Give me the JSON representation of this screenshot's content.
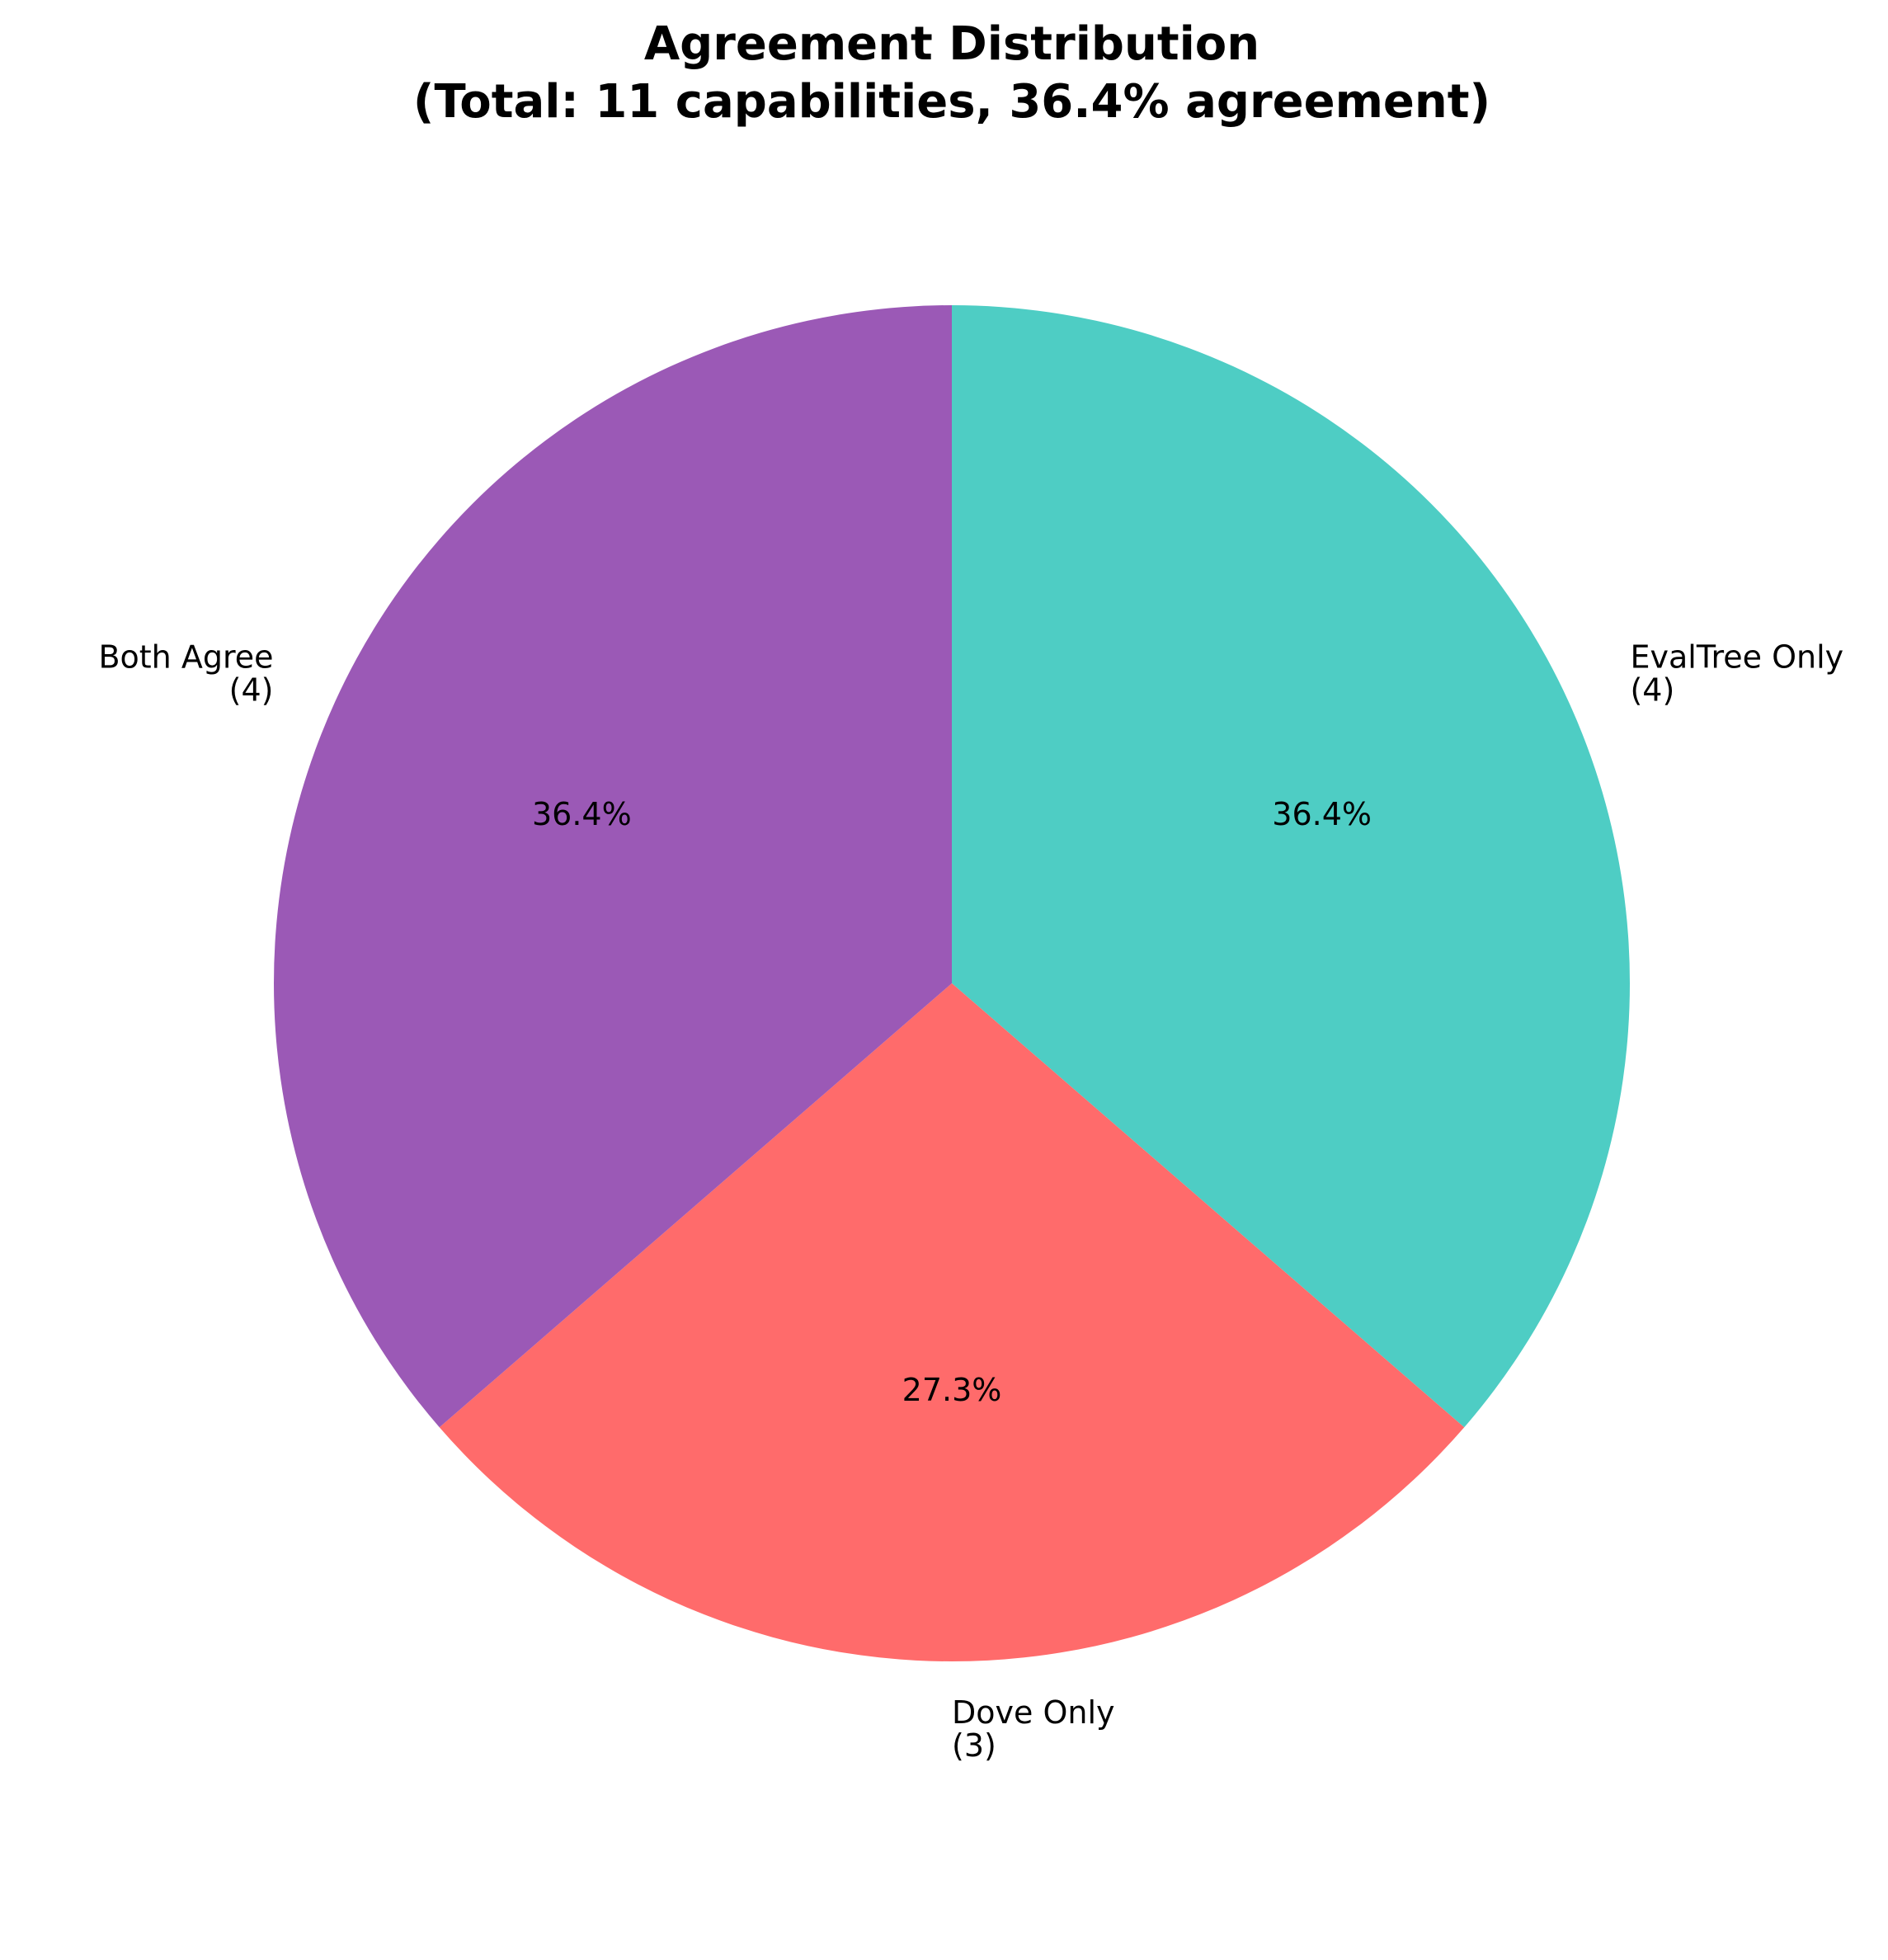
{
  "chart_data": {
    "type": "pie",
    "title": "Agreement Distribution",
    "subtitle": "(Total: 11 capabilities, 36.4% agreement)",
    "start_angle_deg": 90,
    "direction": "clockwise",
    "slices": [
      {
        "label": "EvalTree Only",
        "count_label": "(4)",
        "value": 4,
        "percent_label": "36.4%",
        "color": "#4ECDC4"
      },
      {
        "label": "Dove Only",
        "count_label": "(3)",
        "value": 3,
        "percent_label": "27.3%",
        "color": "#FF6B6B"
      },
      {
        "label": "Both Agree",
        "count_label": "(4)",
        "value": 4,
        "percent_label": "36.4%",
        "color": "#9B59B6"
      }
    ]
  }
}
